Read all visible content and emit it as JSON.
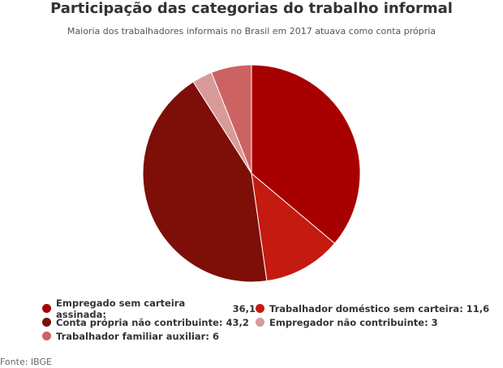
{
  "chart_data": {
    "type": "pie",
    "title": "Participação das categorias do trabalho informal",
    "subtitle": "Maioria dos trabalhadores informais no Brasil em 2017 atuava como conta própria",
    "categories": [
      "Empregado sem carteira assinada",
      "Trabalhador doméstico sem carteira",
      "Conta própria não contribuinte",
      "Empregador não contribuinte",
      "Trabalhador familiar auxiliar"
    ],
    "values": [
      36.1,
      11.6,
      43.2,
      3,
      6
    ],
    "value_labels": [
      "36,1",
      "11,6",
      "43,2",
      "3",
      "6"
    ],
    "colors": [
      "#a80000",
      "#c41a10",
      "#7e0e08",
      "#d99a9a",
      "#cd6262"
    ],
    "source": "Fonte: IBGE"
  }
}
